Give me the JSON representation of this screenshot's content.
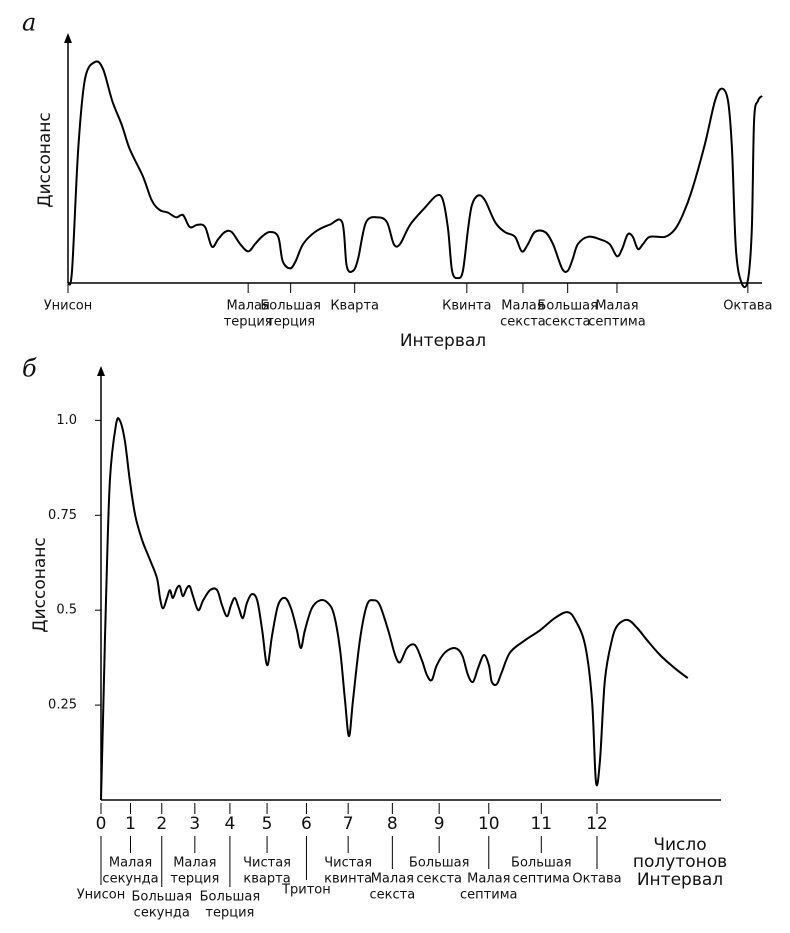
{
  "chart_data": [
    {
      "type": "line",
      "label": "а",
      "ylabel": "Диссонанс",
      "xlabel": "Интервал",
      "xlim": [
        0,
        12.25
      ],
      "ylim": [
        0,
        1
      ],
      "xticks": [
        {
          "value": 0,
          "label": [
            "Унисон"
          ]
        },
        {
          "value": 3.18,
          "label": [
            "Малая",
            "терция"
          ]
        },
        {
          "value": 3.93,
          "label": [
            "Большая",
            "терция"
          ]
        },
        {
          "value": 5.06,
          "label": [
            "Кварта"
          ]
        },
        {
          "value": 7.04,
          "label": [
            "Квинта"
          ]
        },
        {
          "value": 8.03,
          "label": [
            "Малая",
            "секста"
          ]
        },
        {
          "value": 8.82,
          "label": [
            "Большая",
            "секста"
          ]
        },
        {
          "value": 9.69,
          "label": [
            "Малая",
            "септима"
          ]
        },
        {
          "value": 12,
          "label": [
            "Октава"
          ]
        }
      ],
      "series": [
        {
          "color": "#000000",
          "x": [
            0,
            0.07,
            0.18,
            0.3,
            0.48,
            0.62,
            0.78,
            0.95,
            1.09,
            1.32,
            1.48,
            1.62,
            1.76,
            1.91,
            2.03,
            2.15,
            2.29,
            2.42,
            2.54,
            2.65,
            2.77,
            2.89,
            3.04,
            3.18,
            3.3,
            3.42,
            3.56,
            3.71,
            3.79,
            3.92,
            4.02,
            4.15,
            4.36,
            4.62,
            4.84,
            4.92,
            5.03,
            5.12,
            5.26,
            5.47,
            5.63,
            5.75,
            5.86,
            6.04,
            6.3,
            6.51,
            6.62,
            6.71,
            6.78,
            6.88,
            6.97,
            7.06,
            7.13,
            7.24,
            7.36,
            7.54,
            7.71,
            7.89,
            8.01,
            8.12,
            8.24,
            8.42,
            8.56,
            8.72,
            8.82,
            8.91,
            9.0,
            9.18,
            9.39,
            9.56,
            9.69,
            9.78,
            9.88,
            9.97,
            10.06,
            10.15,
            10.27,
            10.54,
            10.71,
            10.85,
            11.01,
            11.24,
            11.42,
            11.54,
            11.65,
            11.72,
            11.79,
            11.89,
            12.0,
            12.07,
            12.11,
            12.18,
            12.25
          ],
          "values": [
            0,
            0.05,
            0.55,
            0.84,
            0.91,
            0.88,
            0.75,
            0.65,
            0.55,
            0.44,
            0.34,
            0.3,
            0.29,
            0.27,
            0.28,
            0.23,
            0.24,
            0.23,
            0.15,
            0.18,
            0.21,
            0.21,
            0.16,
            0.13,
            0.16,
            0.19,
            0.21,
            0.19,
            0.09,
            0.06,
            0.09,
            0.16,
            0.21,
            0.24,
            0.25,
            0.07,
            0.05,
            0.1,
            0.25,
            0.27,
            0.25,
            0.16,
            0.16,
            0.24,
            0.31,
            0.36,
            0.34,
            0.22,
            0.05,
            0.02,
            0.05,
            0.22,
            0.32,
            0.36,
            0.34,
            0.25,
            0.21,
            0.19,
            0.13,
            0.16,
            0.21,
            0.21,
            0.16,
            0.06,
            0.05,
            0.1,
            0.16,
            0.19,
            0.18,
            0.16,
            0.11,
            0.14,
            0.2,
            0.19,
            0.14,
            0.16,
            0.19,
            0.19,
            0.22,
            0.28,
            0.38,
            0.57,
            0.75,
            0.8,
            0.75,
            0.55,
            0.14,
            0.0,
            0.01,
            0.22,
            0.67,
            0.75,
            0.77
          ]
        }
      ]
    },
    {
      "type": "line",
      "label": "б",
      "ylabel": "Диссонанс",
      "xlabel": [
        "Число",
        "полутонов"
      ],
      "interval_label": "Интервал",
      "xlim": [
        1,
        2.25
      ],
      "ylim": [
        0,
        1.13
      ],
      "yticks": [
        0.25,
        {
          "value": 0.5,
          "label": "0.5"
        },
        0.75,
        {
          "value": 1,
          "label": "1.0"
        }
      ],
      "xticks": [
        {
          "value": 1,
          "label": "0"
        },
        {
          "value": 1.0595,
          "label": "1"
        },
        {
          "value": 1.1225,
          "label": "2"
        },
        {
          "value": 1.1892,
          "label": "3"
        },
        {
          "value": 1.2599,
          "label": "4"
        },
        {
          "value": 1.3348,
          "label": "5"
        },
        {
          "value": 1.4142,
          "label": "6"
        },
        {
          "value": 1.4983,
          "label": "7"
        },
        {
          "value": 1.5874,
          "label": "8"
        },
        {
          "value": 1.6818,
          "label": "9"
        },
        {
          "value": 1.7818,
          "label": "10"
        },
        {
          "value": 1.8877,
          "label": "11"
        },
        {
          "value": 2,
          "label": "12"
        }
      ],
      "intervals": [
        [
          "Унисон"
        ],
        [
          "Малая",
          "секунда"
        ],
        [
          "Большая",
          "секунда"
        ],
        [
          "Малая",
          "терция"
        ],
        [
          "Большая",
          "терция"
        ],
        [
          "Чистая",
          "кварта"
        ],
        [
          "Тритон"
        ],
        [
          "Чистая",
          "квинта"
        ],
        [
          "Малая",
          "секста"
        ],
        [
          "Большая",
          "секста"
        ],
        [
          "Малая",
          "септима"
        ],
        [
          "Большая",
          "септима"
        ],
        [
          "Октава"
        ]
      ],
      "series": [
        {
          "color": "#000000",
          "x": [
            1.0,
            1.004,
            1.01,
            1.018,
            1.03,
            1.038,
            1.048,
            1.058,
            1.069,
            1.083,
            1.099,
            1.113,
            1.119,
            1.125,
            1.133,
            1.139,
            1.145,
            1.153,
            1.159,
            1.165,
            1.173,
            1.179,
            1.185,
            1.196,
            1.206,
            1.22,
            1.234,
            1.244,
            1.254,
            1.262,
            1.27,
            1.278,
            1.286,
            1.294,
            1.304,
            1.315,
            1.325,
            1.335,
            1.345,
            1.357,
            1.371,
            1.383,
            1.395,
            1.403,
            1.411,
            1.425,
            1.442,
            1.458,
            1.47,
            1.482,
            1.492,
            1.5,
            1.508,
            1.522,
            1.536,
            1.55,
            1.562,
            1.579,
            1.593,
            1.603,
            1.617,
            1.633,
            1.647,
            1.657,
            1.667,
            1.677,
            1.694,
            1.714,
            1.728,
            1.74,
            1.75,
            1.76,
            1.772,
            1.782,
            1.788,
            1.798,
            1.808,
            1.825,
            1.855,
            1.885,
            1.915,
            1.94,
            1.956,
            1.976,
            1.99,
            1.998,
            2.006,
            2.016,
            2.03,
            2.042,
            2.062,
            2.081,
            2.101,
            2.127,
            2.157,
            2.183
          ],
          "values": [
            0,
            0.211,
            0.526,
            0.842,
            0.987,
            1.0,
            0.947,
            0.842,
            0.75,
            0.684,
            0.632,
            0.584,
            0.532,
            0.505,
            0.532,
            0.553,
            0.532,
            0.558,
            0.563,
            0.537,
            0.558,
            0.563,
            0.539,
            0.5,
            0.526,
            0.553,
            0.553,
            0.513,
            0.484,
            0.513,
            0.532,
            0.505,
            0.479,
            0.518,
            0.542,
            0.526,
            0.447,
            0.355,
            0.434,
            0.513,
            0.532,
            0.505,
            0.447,
            0.4,
            0.447,
            0.505,
            0.526,
            0.518,
            0.487,
            0.395,
            0.263,
            0.168,
            0.263,
            0.421,
            0.513,
            0.526,
            0.513,
            0.447,
            0.382,
            0.363,
            0.4,
            0.408,
            0.368,
            0.329,
            0.316,
            0.355,
            0.389,
            0.4,
            0.382,
            0.329,
            0.311,
            0.347,
            0.382,
            0.355,
            0.311,
            0.305,
            0.337,
            0.389,
            0.421,
            0.447,
            0.479,
            0.495,
            0.474,
            0.408,
            0.263,
            0.047,
            0.105,
            0.316,
            0.421,
            0.461,
            0.474,
            0.453,
            0.421,
            0.382,
            0.347,
            0.321
          ]
        }
      ]
    }
  ]
}
